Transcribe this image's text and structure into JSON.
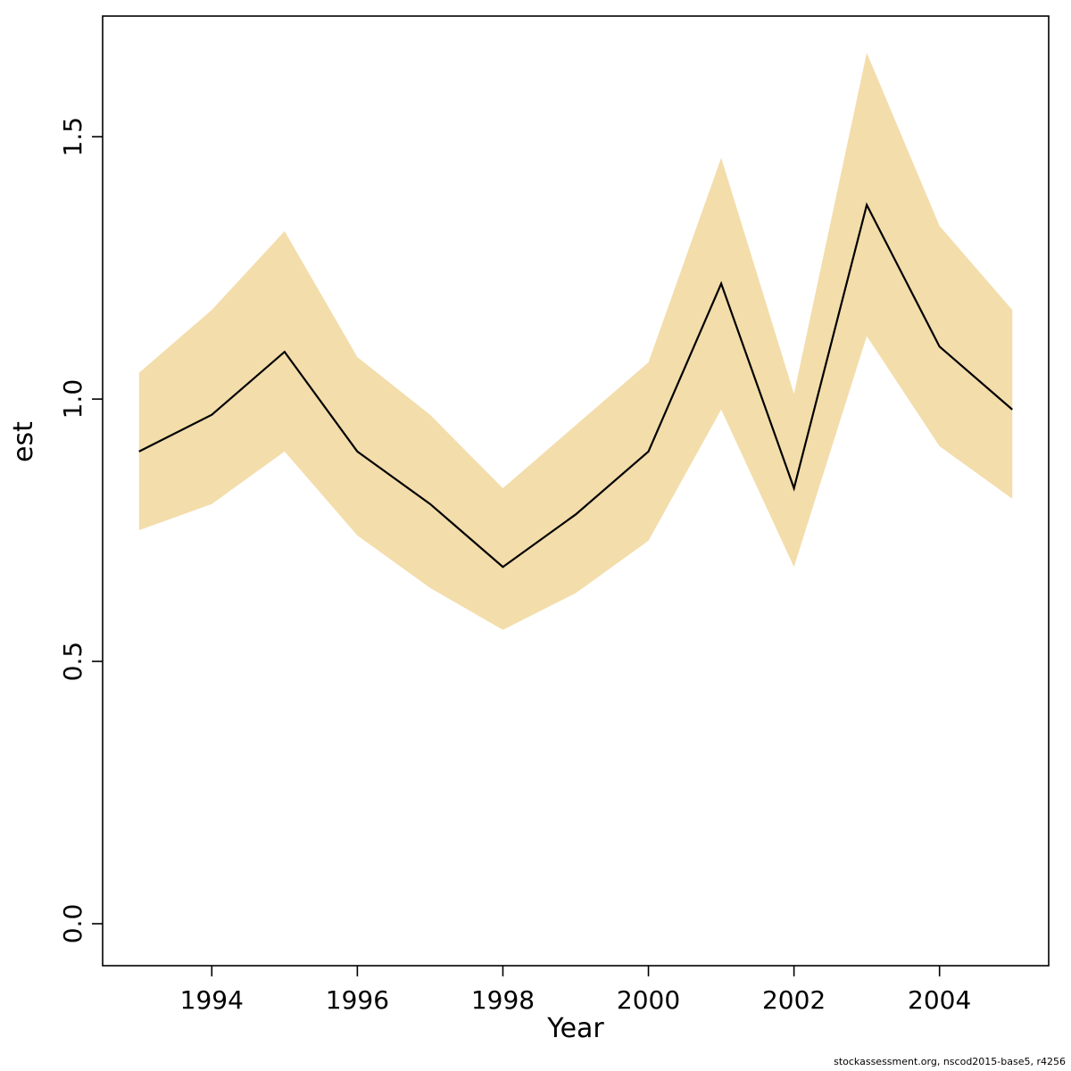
{
  "footer": "stockassessment.org, nscod2015-base5, r4256",
  "chart_data": {
    "type": "line",
    "title": "",
    "xlabel": "Year",
    "ylabel": "est",
    "x": [
      1993,
      1994,
      1995,
      1996,
      1997,
      1998,
      1999,
      2000,
      2001,
      2002,
      2003,
      2004,
      2005
    ],
    "series": [
      {
        "name": "est",
        "values": [
          0.9,
          0.97,
          1.09,
          0.9,
          0.8,
          0.68,
          0.78,
          0.9,
          1.22,
          0.83,
          1.37,
          1.1,
          0.98
        ]
      },
      {
        "name": "lower_ci",
        "values": [
          0.75,
          0.8,
          0.9,
          0.74,
          0.64,
          0.56,
          0.63,
          0.73,
          0.98,
          0.68,
          1.12,
          0.91,
          0.81
        ]
      },
      {
        "name": "upper_ci",
        "values": [
          1.05,
          1.17,
          1.32,
          1.08,
          0.97,
          0.83,
          0.95,
          1.07,
          1.46,
          1.01,
          1.66,
          1.33,
          1.17
        ]
      }
    ],
    "x_ticks": [
      1994,
      1996,
      1998,
      2000,
      2002,
      2004
    ],
    "y_ticks": [
      "0.0",
      "0.5",
      "1.0",
      "1.5"
    ],
    "y_tick_values": [
      0.0,
      0.5,
      1.0,
      1.5
    ],
    "xlim": [
      1992.5,
      2005.5
    ],
    "ylim": [
      -0.08,
      1.73
    ],
    "grid": false,
    "legend": "none",
    "band_color": "#f3ddab",
    "line_color": "#000000"
  }
}
